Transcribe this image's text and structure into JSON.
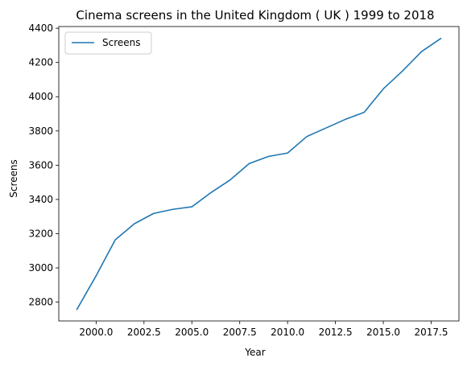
{
  "chart_data": {
    "type": "line",
    "title": "Cinema screens in the United Kingdom ( UK ) 1999 to 2018",
    "xlabel": "Year",
    "ylabel": "Screens",
    "x": [
      1999,
      2000,
      2001,
      2002,
      2003,
      2004,
      2005,
      2006,
      2007,
      2008,
      2009,
      2010,
      2011,
      2012,
      2013,
      2014,
      2015,
      2016,
      2017,
      2018
    ],
    "series": [
      {
        "name": "Screens",
        "color": "#1f77b4",
        "values": [
          2758,
          2954,
          3164,
          3258,
          3318,
          3342,
          3357,
          3440,
          3514,
          3610,
          3651,
          3671,
          3767,
          3817,
          3867,
          3909,
          4046,
          4150,
          4264,
          4340
        ]
      }
    ],
    "xlim": [
      1999,
      2018
    ],
    "ylim": [
      2690,
      4410
    ],
    "xticks": [
      2000.0,
      2002.5,
      2005.0,
      2007.5,
      2010.0,
      2012.5,
      2015.0,
      2017.5
    ],
    "xtick_labels": [
      "2000.0",
      "2002.5",
      "2005.0",
      "2007.5",
      "2010.0",
      "2012.5",
      "2015.0",
      "2017.5"
    ],
    "yticks": [
      2800,
      3000,
      3200,
      3400,
      3600,
      3800,
      4000,
      4200,
      4400
    ],
    "ytick_labels": [
      "2800",
      "3000",
      "3200",
      "3400",
      "3600",
      "3800",
      "4000",
      "4200",
      "4400"
    ],
    "grid": false,
    "legend": "top-left"
  }
}
